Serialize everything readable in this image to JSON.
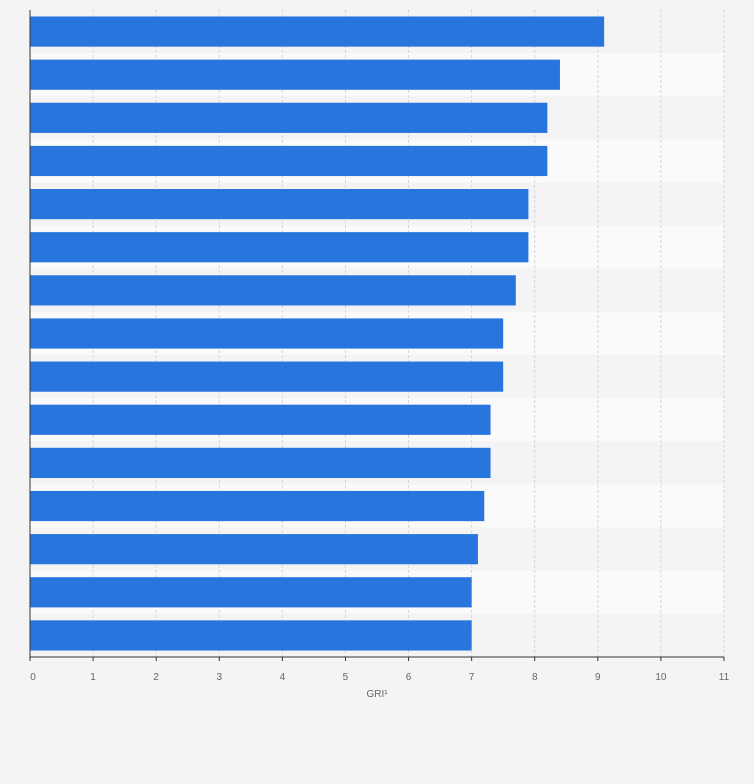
{
  "chart_data": {
    "type": "bar",
    "orientation": "horizontal",
    "categories": [
      "",
      "",
      "",
      "",
      "",
      "",
      "",
      "",
      "",
      "",
      "",
      "",
      "",
      "",
      ""
    ],
    "values": [
      9.1,
      8.4,
      8.2,
      8.2,
      7.9,
      7.9,
      7.7,
      7.5,
      7.5,
      7.3,
      7.3,
      7.2,
      7.1,
      7.0,
      7.0
    ],
    "xlabel": "GRI¹",
    "ylabel": "",
    "xlim": [
      0,
      11
    ],
    "xticks": [
      "0",
      "1",
      "2",
      "3",
      "4",
      "5",
      "6",
      "7",
      "8",
      "9",
      "10",
      "11"
    ],
    "grid": true,
    "bar_color": "#2876dd",
    "band_colors": [
      "#f4f4f4",
      "#fafafa"
    ],
    "grid_color": "#d6d6d6",
    "axis_color": "#333333"
  }
}
